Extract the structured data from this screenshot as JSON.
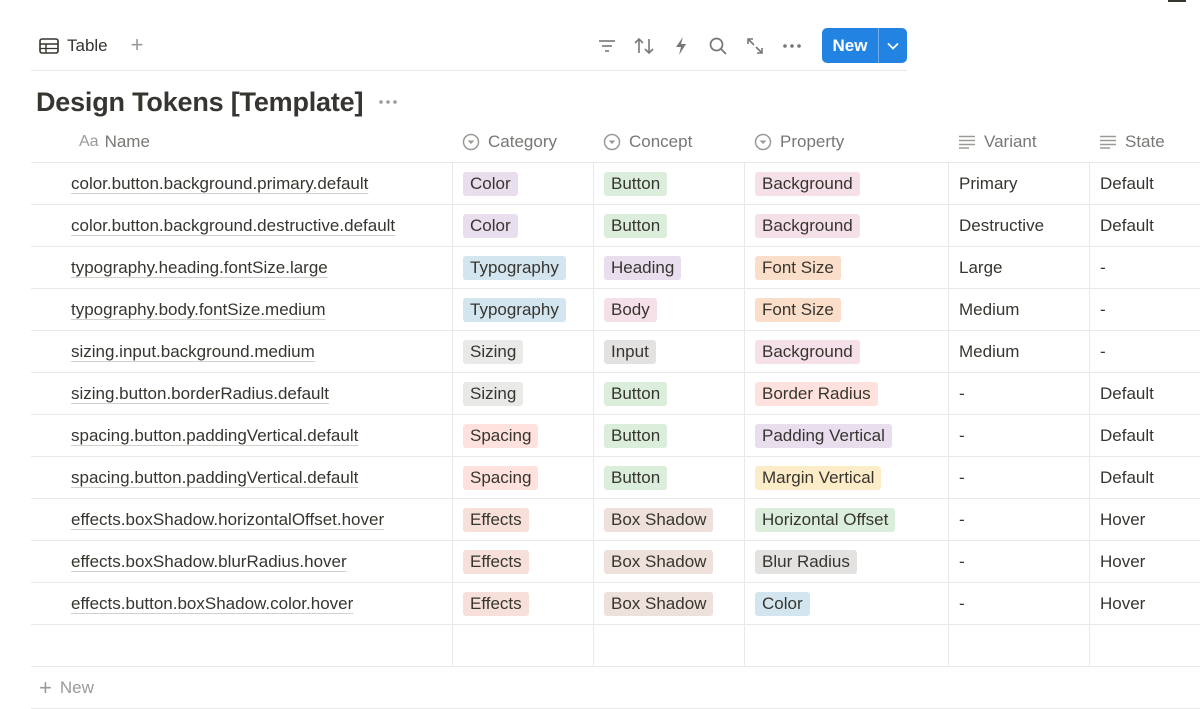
{
  "toolbar": {
    "view_label": "Table",
    "view_icon": "table-icon",
    "add_view_label": "+",
    "tools": [
      "filter-icon",
      "sort-icon",
      "automation-bolt-icon",
      "search-icon",
      "expand-icon",
      "more-icon"
    ],
    "new_label": "New"
  },
  "page": {
    "title": "Design Tokens [Template]"
  },
  "table": {
    "headers": {
      "name_prefix": "Aa",
      "name": "Name",
      "category": "Category",
      "concept": "Concept",
      "property": "Property",
      "variant": "Variant",
      "state": "State"
    },
    "rows": [
      {
        "name": "color.button.background.primary.default",
        "category": "Color",
        "concept": "Button",
        "property": "Background",
        "variant": "Primary",
        "state": "Default"
      },
      {
        "name": "color.button.background.destructive.default",
        "category": "Color",
        "concept": "Button",
        "property": "Background",
        "variant": "Destructive",
        "state": "Default"
      },
      {
        "name": "typography.heading.fontSize.large",
        "category": "Typography",
        "concept": "Heading",
        "property": "Font Size",
        "variant": "Large",
        "state": "-"
      },
      {
        "name": "typography.body.fontSize.medium",
        "category": "Typography",
        "concept": "Body",
        "property": "Font Size",
        "variant": "Medium",
        "state": "-"
      },
      {
        "name": "sizing.input.background.medium",
        "category": "Sizing",
        "concept": "Input",
        "property": "Background",
        "variant": "Medium",
        "state": "-"
      },
      {
        "name": "sizing.button.borderRadius.default",
        "category": "Sizing",
        "concept": "Button",
        "property": "Border Radius",
        "variant": "-",
        "state": "Default"
      },
      {
        "name": "spacing.button.paddingVertical.default",
        "category": "Spacing",
        "concept": "Button",
        "property": "Padding Vertical",
        "variant": "-",
        "state": "Default"
      },
      {
        "name": "spacing.button.paddingVertical.default",
        "category": "Spacing",
        "concept": "Button",
        "property": "Margin Vertical",
        "variant": "-",
        "state": "Default"
      },
      {
        "name": "effects.boxShadow.horizontalOffset.hover",
        "category": "Effects",
        "concept": "Box Shadow",
        "property": "Horizontal Offset",
        "variant": "-",
        "state": "Hover"
      },
      {
        "name": "effects.boxShadow.blurRadius.hover",
        "category": "Effects",
        "concept": "Box Shadow",
        "property": "Blur Radius",
        "variant": "-",
        "state": "Hover"
      },
      {
        "name": "effects.button.boxShadow.color.hover",
        "category": "Effects",
        "concept": "Box Shadow",
        "property": "Color",
        "variant": "-",
        "state": "Hover"
      }
    ],
    "new_row_label": "New"
  },
  "tag_colors": {
    "Color": "#e8deee",
    "Typography": "#d3e5ef",
    "Sizing": "#e9e9e7",
    "Spacing": "#ffe2dd",
    "Effects": "#f6e0d9",
    "Button": "#dbeddb",
    "Heading": "#e8deee",
    "Body": "#f5e0e9",
    "Input": "#e3e2e0",
    "Box Shadow": "#eee0da",
    "Background": "#f5e0e9",
    "Font Size": "#fadec9",
    "Border Radius": "#ffe2dd",
    "Padding Vertical": "#e8deee",
    "Margin Vertical": "#fdecc8",
    "Horizontal Offset": "#dbeddb",
    "Blur Radius": "#e3e2e0",
    "Color_property": "#d3e5ef"
  },
  "accent": "#2383e2"
}
